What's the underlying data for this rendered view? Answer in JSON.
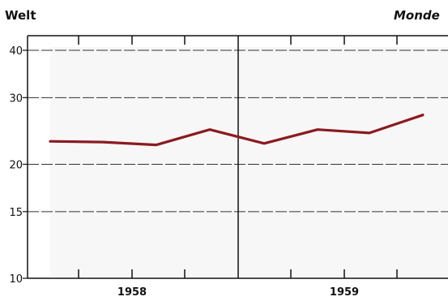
{
  "chart_data": {
    "type": "line",
    "title_left": "Welt",
    "title_right": "Monde",
    "y_scale": "log",
    "ylim": [
      10,
      45
    ],
    "y_ticks": [
      10,
      15,
      20,
      30,
      40
    ],
    "grid": true,
    "x_periods": [
      "1958",
      "1959"
    ],
    "x": [
      "1958 Q1",
      "1958 Q2",
      "1958 Q3",
      "1958 Q4",
      "1959 Q1",
      "1959 Q2",
      "1959 Q3",
      "1959 Q4"
    ],
    "series": [
      {
        "color": "#8b1a1f",
        "values": [
          23.0,
          22.9,
          22.5,
          24.7,
          22.7,
          24.7,
          24.2,
          27.0
        ]
      }
    ]
  }
}
